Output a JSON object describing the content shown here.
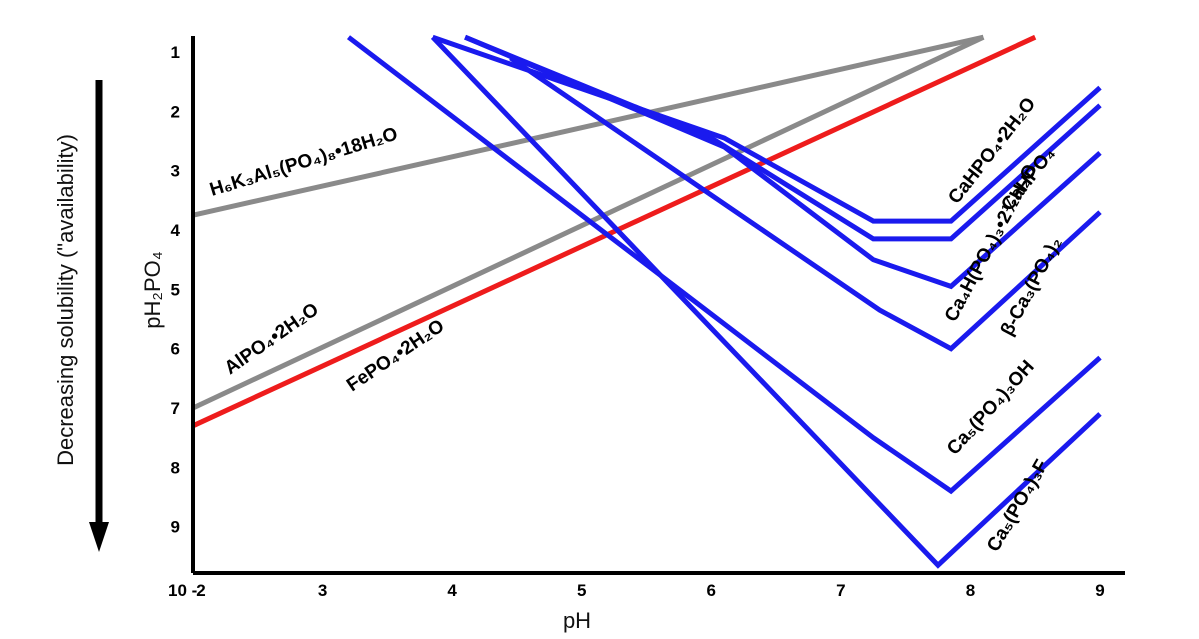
{
  "chart_data": {
    "type": "line",
    "title": "",
    "xlabel": "pH",
    "ylabel": "pH₂PO₄",
    "side_label": "Decreasing solubility (\"availability)",
    "xlim": [
      2,
      9
    ],
    "ylim": [
      1,
      10
    ],
    "y_inverted": true,
    "x_ticks": [
      "2",
      "3",
      "4",
      "5",
      "6",
      "7",
      "8",
      "9"
    ],
    "y_ticks": [
      "1",
      "2",
      "3",
      "4",
      "5",
      "6",
      "7",
      "8",
      "9"
    ],
    "y_origin_label": "10 -",
    "colors": {
      "gray": "#8a8a8a",
      "red": "#ee1c1c",
      "blue": "#1a1aee",
      "axis": "#000000"
    },
    "series": [
      {
        "name": "H₆K₃Al₅(PO₄)₈•18H₂O",
        "color": "gray",
        "points": [
          [
            2.0,
            3.75
          ],
          [
            8.1,
            0.75
          ]
        ]
      },
      {
        "name": "AlPO₄•2H₂O",
        "color": "gray",
        "points": [
          [
            2.0,
            7.0
          ],
          [
            8.1,
            0.75
          ]
        ]
      },
      {
        "name": "FePO₄•2H₂O",
        "color": "red",
        "points": [
          [
            2.0,
            7.3
          ],
          [
            8.5,
            0.75
          ]
        ]
      },
      {
        "name": "CaHPO₄•2H₂O",
        "color": "blue",
        "points": [
          [
            3.85,
            0.75
          ],
          [
            6.1,
            2.45
          ],
          [
            7.25,
            3.85
          ],
          [
            7.85,
            3.85
          ],
          [
            9.0,
            1.6
          ]
        ]
      },
      {
        "name": "CaHPO₄",
        "color": "blue",
        "points": [
          [
            4.1,
            0.75
          ],
          [
            6.0,
            2.45
          ],
          [
            7.25,
            4.15
          ],
          [
            7.85,
            4.15
          ],
          [
            9.0,
            1.9
          ]
        ]
      },
      {
        "name": "Ca₄H(PO₄)₃•2½H₂O",
        "color": "blue",
        "points": [
          [
            4.1,
            0.75
          ],
          [
            6.1,
            2.6
          ],
          [
            7.25,
            4.5
          ],
          [
            7.85,
            4.95
          ],
          [
            9.0,
            2.7
          ]
        ]
      },
      {
        "name": "β-Ca₃(PO₄)₂",
        "color": "blue",
        "points": [
          [
            4.45,
            1.1
          ],
          [
            7.3,
            5.35
          ],
          [
            7.85,
            6.0
          ],
          [
            9.0,
            3.7
          ]
        ]
      },
      {
        "name": "Ca₅(PO₄)₃OH",
        "color": "blue",
        "points": [
          [
            3.2,
            0.75
          ],
          [
            7.25,
            7.5
          ],
          [
            7.85,
            8.4
          ],
          [
            9.0,
            6.15
          ]
        ]
      },
      {
        "name": "Ca₅(PO₄)₃F",
        "color": "blue",
        "points": [
          [
            3.85,
            0.75
          ],
          [
            7.75,
            9.65
          ],
          [
            9.0,
            7.1
          ]
        ]
      }
    ]
  },
  "labels": [
    {
      "series": 0,
      "text": "H₆K₃Al₅(PO₄)₈•18H₂O"
    },
    {
      "series": 1,
      "text": "AlPO₄•2H₂O"
    },
    {
      "series": 2,
      "text": "FePO₄•2H₂O"
    },
    {
      "series": 3,
      "text": "CaHPO₄•2H₂O"
    },
    {
      "series": 4,
      "text": "CaHPO₄"
    },
    {
      "series": 5,
      "text": "Ca₄H(PO₄)₃•2½H₂O"
    },
    {
      "series": 6,
      "text": "β-Ca₃(PO₄)₂"
    },
    {
      "series": 7,
      "text": "Ca₅(PO₄)₃OH"
    },
    {
      "series": 8,
      "text": "Ca₅(PO₄)₃F"
    }
  ]
}
